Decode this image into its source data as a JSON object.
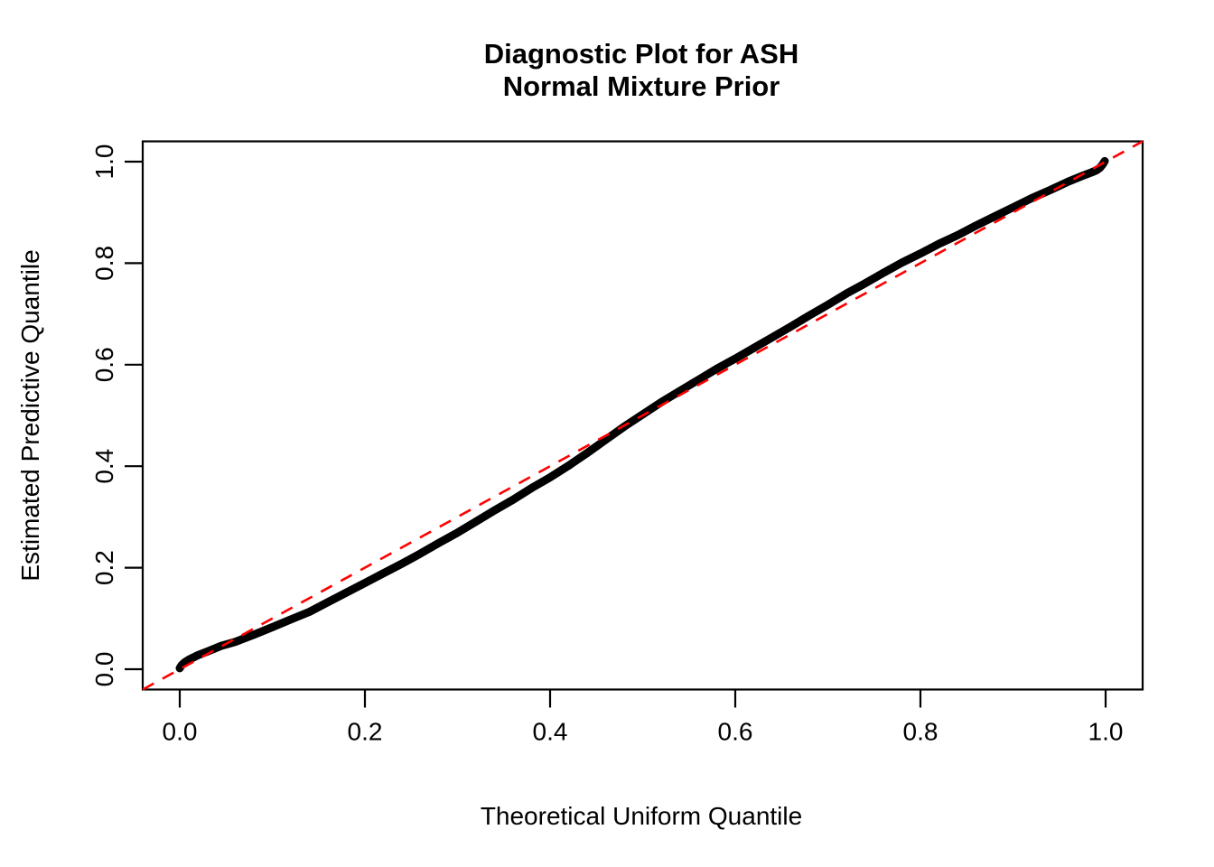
{
  "title": {
    "line1": "Diagnostic Plot for ASH",
    "line2": "Normal Mixture Prior"
  },
  "axes": {
    "x_label": "Theoretical Uniform Quantile",
    "y_label": "Estimated Predictive Quantile"
  },
  "colors": {
    "curve": "#000000",
    "reference": "#FF0000",
    "frame": "#000000",
    "background": "#FFFFFF"
  },
  "chart_data": {
    "type": "line",
    "title": "Diagnostic Plot for ASH / Normal Mixture Prior",
    "xlabel": "Theoretical Uniform Quantile",
    "ylabel": "Estimated Predictive Quantile",
    "xlim": [
      -0.04,
      1.04
    ],
    "ylim": [
      -0.04,
      1.04
    ],
    "x_ticks": [
      0.0,
      0.2,
      0.4,
      0.6,
      0.8,
      1.0
    ],
    "y_ticks": [
      0.0,
      0.2,
      0.4,
      0.6,
      0.8,
      1.0
    ],
    "grid": false,
    "legend": "none",
    "series": [
      {
        "name": "estimated-predictive-quantile-curve",
        "color": "#000000",
        "stroke_px": 9,
        "points": [
          [
            0.0,
            0.002
          ],
          [
            0.002,
            0.008
          ],
          [
            0.005,
            0.013
          ],
          [
            0.01,
            0.019
          ],
          [
            0.02,
            0.028
          ],
          [
            0.03,
            0.035
          ],
          [
            0.045,
            0.046
          ],
          [
            0.06,
            0.054
          ],
          [
            0.08,
            0.068
          ],
          [
            0.1,
            0.083
          ],
          [
            0.12,
            0.098
          ],
          [
            0.14,
            0.113
          ],
          [
            0.16,
            0.132
          ],
          [
            0.18,
            0.151
          ],
          [
            0.2,
            0.17
          ],
          [
            0.22,
            0.189
          ],
          [
            0.24,
            0.208
          ],
          [
            0.26,
            0.228
          ],
          [
            0.28,
            0.249
          ],
          [
            0.3,
            0.269
          ],
          [
            0.32,
            0.291
          ],
          [
            0.34,
            0.313
          ],
          [
            0.36,
            0.334
          ],
          [
            0.38,
            0.357
          ],
          [
            0.4,
            0.378
          ],
          [
            0.42,
            0.401
          ],
          [
            0.44,
            0.426
          ],
          [
            0.46,
            0.452
          ],
          [
            0.48,
            0.478
          ],
          [
            0.5,
            0.502
          ],
          [
            0.52,
            0.526
          ],
          [
            0.54,
            0.548
          ],
          [
            0.56,
            0.57
          ],
          [
            0.58,
            0.592
          ],
          [
            0.6,
            0.612
          ],
          [
            0.62,
            0.633
          ],
          [
            0.64,
            0.654
          ],
          [
            0.66,
            0.675
          ],
          [
            0.68,
            0.697
          ],
          [
            0.7,
            0.718
          ],
          [
            0.72,
            0.74
          ],
          [
            0.74,
            0.76
          ],
          [
            0.76,
            0.781
          ],
          [
            0.78,
            0.801
          ],
          [
            0.8,
            0.819
          ],
          [
            0.82,
            0.838
          ],
          [
            0.84,
            0.855
          ],
          [
            0.86,
            0.874
          ],
          [
            0.88,
            0.892
          ],
          [
            0.9,
            0.91
          ],
          [
            0.92,
            0.928
          ],
          [
            0.94,
            0.944
          ],
          [
            0.96,
            0.961
          ],
          [
            0.975,
            0.972
          ],
          [
            0.985,
            0.979
          ],
          [
            0.99,
            0.983
          ],
          [
            0.994,
            0.988
          ],
          [
            0.997,
            0.995
          ],
          [
            0.999,
            1.001
          ]
        ]
      }
    ],
    "reference_line": {
      "name": "identity-diagonal",
      "color": "#FF0000",
      "style": "dashed",
      "slope": 1,
      "intercept": 0,
      "from": [
        -0.04,
        -0.04
      ],
      "to": [
        1.04,
        1.04
      ]
    }
  }
}
